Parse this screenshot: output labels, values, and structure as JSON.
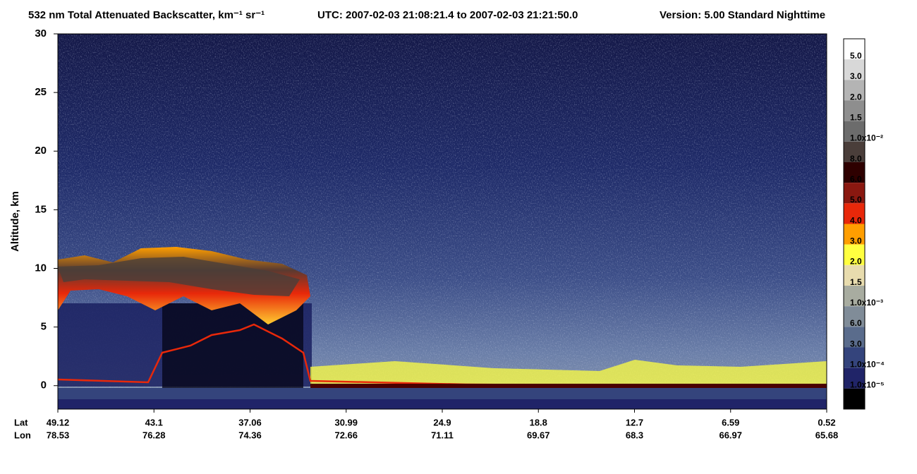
{
  "chart_data": {
    "type": "curtain",
    "title": "532 nm Total Attenuated Backscatter, km⁻¹ sr⁻¹",
    "time_range": "UTC:  2007-02-03 21:08:21.4  to  2007-02-03 21:21:50.0",
    "version": "Version: 5.00  Standard  Nighttime",
    "y_label": "Altitude, km",
    "ylim": [
      -2,
      30
    ],
    "yticks": [
      0,
      5,
      10,
      15,
      20,
      25,
      30
    ],
    "x_rows": [
      {
        "name": "Lat",
        "labels": [
          49.12,
          43.1,
          37.06,
          30.99,
          24.9,
          18.8,
          12.7,
          6.59,
          0.52
        ]
      },
      {
        "name": "Lon",
        "labels": [
          78.53,
          76.28,
          74.36,
          72.66,
          71.11,
          69.67,
          68.3,
          66.97,
          65.68
        ]
      }
    ],
    "colorbar": {
      "colors": [
        "#ffffff",
        "#d8d8d8",
        "#b4b4b4",
        "#8e8e8e",
        "#6c6c6c",
        "#4a3e3a",
        "#2e0000",
        "#8a1810",
        "#e8280a",
        "#ff9e00",
        "#ffff40",
        "#e8dcae",
        "#a8aca0",
        "#808c98",
        "#5a6c8c",
        "#34447c",
        "#202468",
        "#000000"
      ],
      "labels": [
        "5.0",
        "3.0",
        "2.0",
        "1.5",
        "1.0x10⁻²",
        "8.0",
        "6.0",
        "5.0",
        "4.0",
        "3.0",
        "2.0",
        "1.5",
        "1.0x10⁻³",
        "6.0",
        "3.0",
        "1.0x10⁻⁴",
        "1.0x10⁻⁵"
      ]
    }
  }
}
